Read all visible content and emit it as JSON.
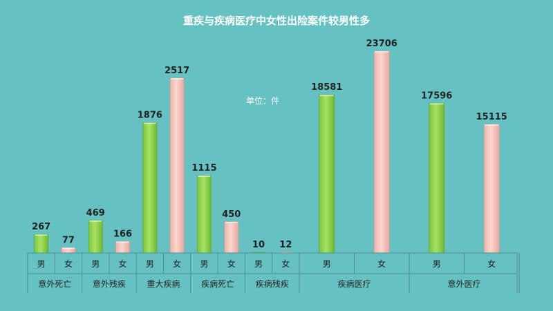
{
  "chart_data": {
    "type": "bar",
    "title": "重疾与疾病医疗中女性出险案件较男性多",
    "unit": "单位：件",
    "groups": [
      {
        "name": "意外死亡",
        "labels": [
          "男",
          "女"
        ],
        "values": [
          267,
          77
        ]
      },
      {
        "name": "意外残疾",
        "labels": [
          "男",
          "女"
        ],
        "values": [
          469,
          166
        ]
      },
      {
        "name": "重大疾病",
        "labels": [
          "男",
          "女"
        ],
        "values": [
          1876,
          2517
        ]
      },
      {
        "name": "疾病死亡",
        "labels": [
          "男",
          "女"
        ],
        "values": [
          1115,
          450
        ]
      },
      {
        "name": "疾病残疾",
        "labels": [
          "男",
          "女"
        ],
        "values": [
          10,
          12
        ]
      },
      {
        "name": "疾病医疗",
        "labels": [
          "男",
          "女"
        ],
        "values": [
          18581,
          23706
        ]
      },
      {
        "name": "意外医疗",
        "labels": [
          "男",
          "女"
        ],
        "values": [
          17596,
          15115
        ]
      }
    ],
    "male_color": "#8fd64a",
    "female_color": "#f4c4bb",
    "legend": "none",
    "grid": false
  }
}
